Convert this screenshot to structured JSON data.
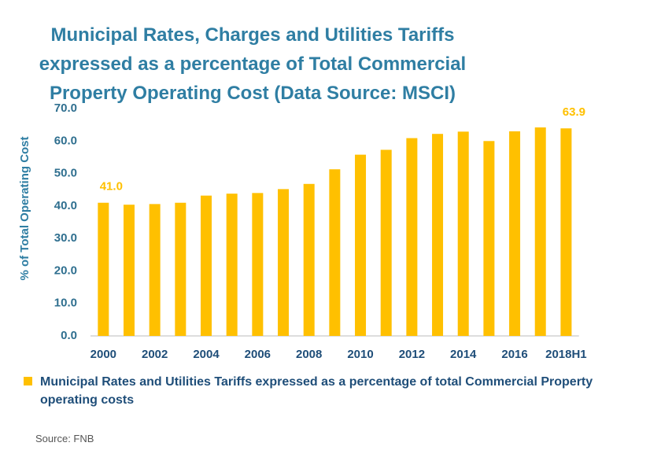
{
  "chart_data": {
    "type": "bar",
    "title": "Municipal Rates, Charges and Utilities Tariffs expressed as a percentage of Total Commercial Property Operating Cost (Data Source: MSCI)",
    "y_label": "% of Total Operating Cost",
    "categories": [
      "2000",
      null,
      "2002",
      null,
      "2004",
      null,
      "2006",
      null,
      "2008",
      null,
      "2010",
      null,
      "2012",
      null,
      "2014",
      null,
      "2016",
      null,
      "2018H1"
    ],
    "series": [
      {
        "name": "Municipal Rates and Utilities Tariffs expressed as a percentage of total Commercial Property operating costs",
        "color": "#ffc000",
        "values": [
          41.0,
          40.4,
          40.6,
          41.0,
          43.2,
          43.8,
          44.0,
          45.2,
          46.8,
          51.3,
          55.8,
          57.3,
          60.9,
          62.2,
          62.9,
          60.0,
          63.0,
          64.2,
          63.9
        ],
        "value_labels": [
          "41.0",
          null,
          null,
          null,
          null,
          null,
          null,
          null,
          null,
          null,
          null,
          null,
          null,
          null,
          null,
          null,
          null,
          null,
          "63.9"
        ]
      }
    ],
    "ylim": [
      0,
      70
    ],
    "yticks": [
      {
        "value": 0,
        "label": "0.0"
      },
      {
        "value": 10,
        "label": "10.0"
      },
      {
        "value": 20,
        "label": "20.0"
      },
      {
        "value": 30,
        "label": "30.0"
      },
      {
        "value": 40,
        "label": "40.0"
      },
      {
        "value": 50,
        "label": "50.0"
      },
      {
        "value": 60,
        "label": "60.0"
      },
      {
        "value": 70,
        "label": "70.0"
      }
    ],
    "grid": false,
    "source": "Source: FNB"
  }
}
